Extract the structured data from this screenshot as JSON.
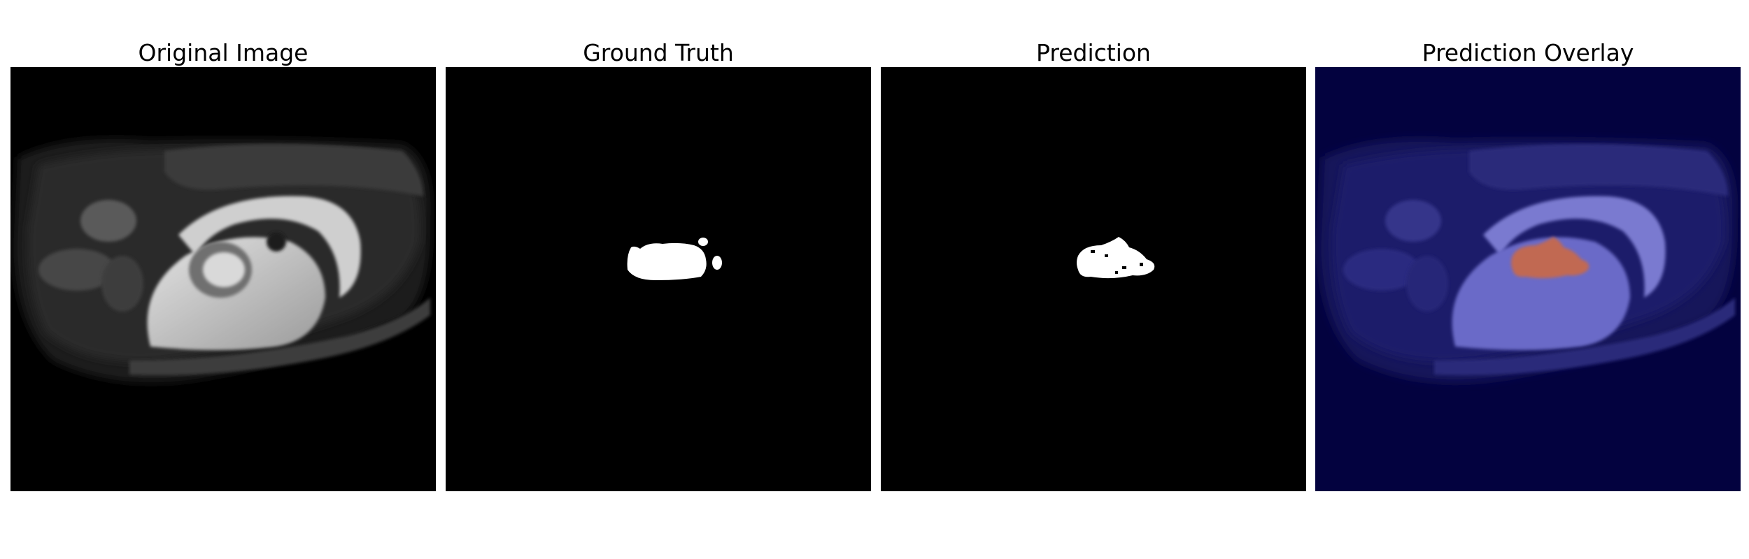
{
  "figure": {
    "panels": [
      {
        "id": "original",
        "title": "Original Image"
      },
      {
        "id": "ground-truth",
        "title": "Ground Truth"
      },
      {
        "id": "prediction",
        "title": "Prediction"
      },
      {
        "id": "overlay",
        "title": "Prediction Overlay"
      }
    ],
    "colors": {
      "page_background": "#ffffff",
      "image_background": "#000000",
      "mask_foreground": "#ffffff",
      "overlay_background": "#03023f",
      "overlay_tissue": "#6b6bc8",
      "overlay_prediction": "#c9694a"
    }
  }
}
